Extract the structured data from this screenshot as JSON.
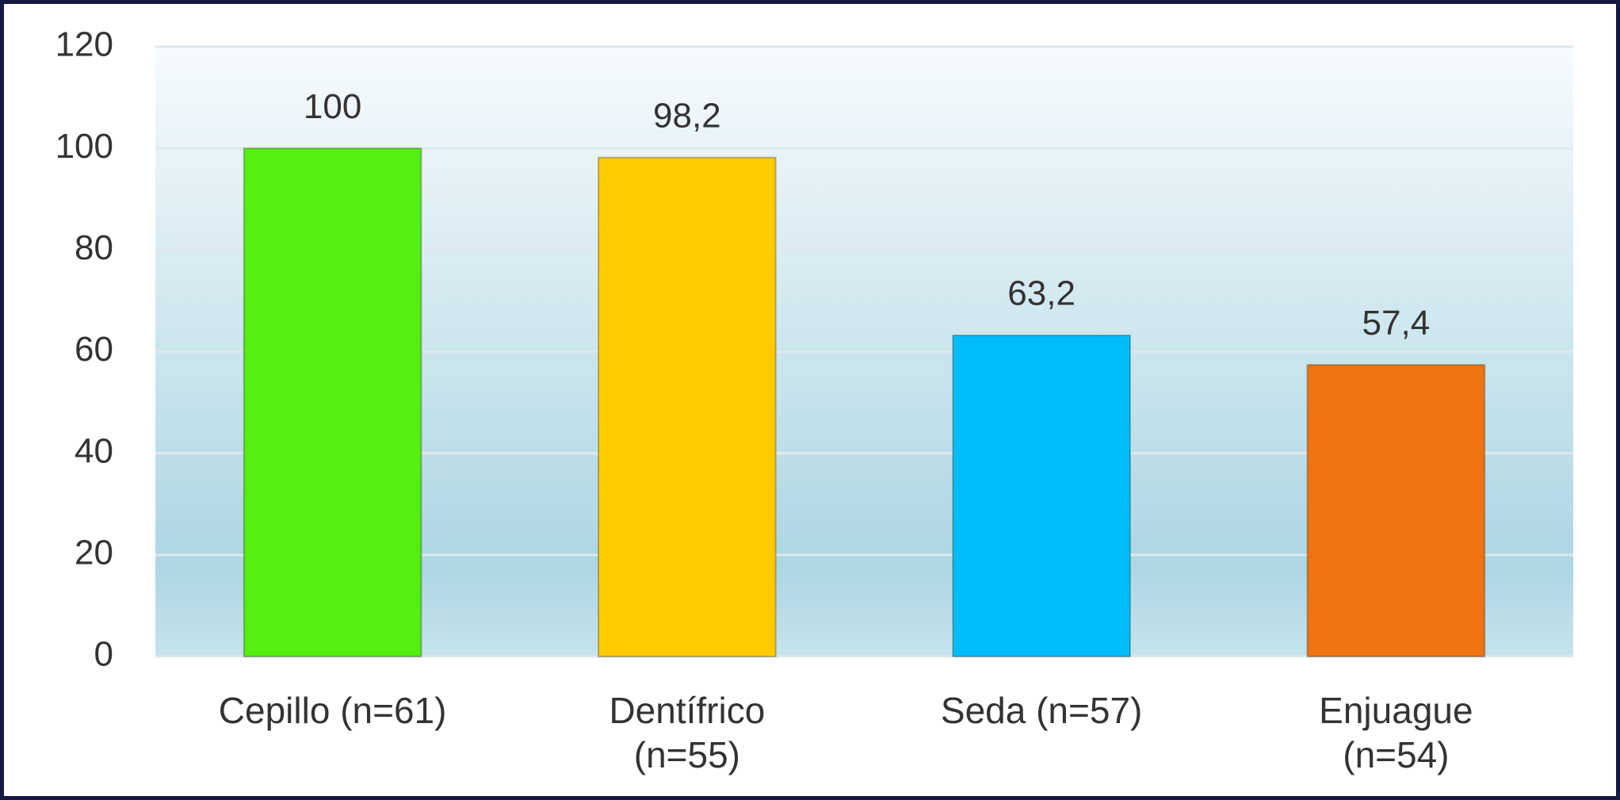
{
  "chart_data": {
    "type": "bar",
    "categories": [
      "Cepillo (n=61)",
      "Dentífrico\n(n=55)",
      "Seda (n=57)",
      "Enjuague\n(n=54)"
    ],
    "values": [
      100,
      98.2,
      63.2,
      57.4
    ],
    "value_labels": [
      "100",
      "98,2",
      "63,2",
      "57,4"
    ],
    "colors": [
      "#55ee11",
      "#ffca00",
      "#00bdf8",
      "#f07412"
    ],
    "ylim": [
      0,
      120
    ],
    "yticks": [
      0,
      20,
      40,
      60,
      80,
      100,
      120
    ],
    "grid": true
  }
}
